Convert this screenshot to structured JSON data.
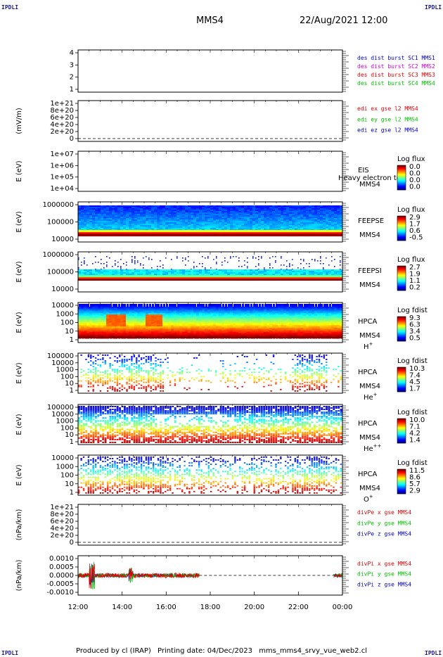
{
  "header": {
    "corner_label": "IPDLI",
    "spacecraft": "MMS4",
    "datetime": "22/Aug/2021 12:00"
  },
  "footer": {
    "produced_by": "Produced by cl (IRAP)",
    "printing_date": "Printing date: 04/Dec/2023",
    "filename": "mms_mms4_srvy_vue_web2.cl"
  },
  "colors": {
    "mms1": "#0000c8",
    "mms2": "#d000d0",
    "mms3": "#e00000",
    "mms4": "#00c000",
    "x": "#e00000",
    "y": "#00c000",
    "z": "#0000c8"
  },
  "chart_data": [
    {
      "id": "burst",
      "type": "scatter",
      "panel": 0,
      "ylim": [
        0.5,
        4.5
      ],
      "yticks": [
        "4",
        "3",
        "2",
        "1"
      ],
      "legend": [
        {
          "text": "des dist burst SC1 MMS1",
          "color": "mms1"
        },
        {
          "text": "des dist burst SC2 MMS2",
          "color": "mms2"
        },
        {
          "text": "des dist burst SC3 MMS3",
          "color": "mms3"
        },
        {
          "text": "des dist burst SC4 MMS4",
          "color": "mms4"
        }
      ]
    },
    {
      "id": "edi",
      "type": "line",
      "panel": 1,
      "ylabel": "(mV/m)",
      "yticks": [
        "1e+21",
        "8e+20",
        "6e+20",
        "4e+20",
        "2e+20",
        "0"
      ],
      "legend": [
        {
          "text": "edi ex gse l2 MMS4",
          "color": "x"
        },
        {
          "text": "edi ey gse l2 MMS4",
          "color": "y"
        },
        {
          "text": "edi ez gse l2 MMS4",
          "color": "z"
        }
      ]
    },
    {
      "id": "eis",
      "type": "heatmap",
      "panel": 2,
      "ylabel": "E (eV)",
      "yticks": [
        "1e+07",
        "1e+06",
        "1e+05",
        "1e+04"
      ],
      "instrument": "EIS",
      "spacecraft": "MMS4",
      "overlap_text": "Heavy electron to",
      "colorbar": {
        "title": "Log flux",
        "ticks": [
          "0.0",
          "0.0",
          "0.0",
          "0.0"
        ]
      }
    },
    {
      "id": "feepse",
      "type": "heatmap",
      "panel": 3,
      "ylabel": "E (eV)",
      "yticks": [
        "1000000",
        "100000",
        "10000"
      ],
      "instrument": "FEEPSE",
      "spacecraft": "MMS4",
      "colorbar": {
        "title": "Log flux",
        "ticks": [
          "2.9",
          "1.7",
          "0.6",
          "-0.5"
        ]
      }
    },
    {
      "id": "feepsi",
      "type": "heatmap",
      "panel": 4,
      "ylabel": "E (eV)",
      "yticks": [
        "1000000",
        "100000",
        "10000"
      ],
      "instrument": "FEEPSI",
      "spacecraft": "MMS4",
      "colorbar": {
        "title": "Log flux",
        "ticks": [
          "2.7",
          "1.9",
          "1.1",
          "0.2"
        ]
      }
    },
    {
      "id": "hpca_h",
      "type": "heatmap",
      "panel": 5,
      "ylabel": "E (eV)",
      "yticks": [
        "10000",
        "1000",
        "100",
        "10",
        "1"
      ],
      "instrument": "HPCA",
      "spacecraft": "MMS4",
      "species": "H",
      "charge": "+",
      "colorbar": {
        "title": "Log fdist",
        "ticks": [
          "9.3",
          "6.3",
          "3.4",
          "0.5"
        ]
      }
    },
    {
      "id": "hpca_he",
      "type": "heatmap",
      "panel": 6,
      "ylabel": "E (eV)",
      "yticks": [
        "100000",
        "10000",
        "1000",
        "100",
        "10",
        "1"
      ],
      "instrument": "HPCA",
      "spacecraft": "MMS4",
      "species": "He",
      "charge": "+",
      "colorbar": {
        "title": "Log fdist",
        "ticks": [
          "10.3",
          "7.4",
          "4.5",
          "1.7"
        ]
      }
    },
    {
      "id": "hpca_hepp",
      "type": "heatmap",
      "panel": 7,
      "ylabel": "E (eV)",
      "yticks": [
        "100000",
        "10000",
        "1000",
        "100",
        "10",
        "1"
      ],
      "instrument": "HPCA",
      "spacecraft": "MMS4",
      "species": "He",
      "charge": "++",
      "colorbar": {
        "title": "Log fdist",
        "ticks": [
          "10.0",
          "7.1",
          "4.2",
          "1.4"
        ]
      }
    },
    {
      "id": "hpca_o",
      "type": "heatmap",
      "panel": 8,
      "ylabel": "E (eV)",
      "yticks": [
        "10000",
        "1000",
        "100",
        "10",
        "1"
      ],
      "instrument": "HPCA",
      "spacecraft": "MMS4",
      "species": "O",
      "charge": "+",
      "colorbar": {
        "title": "Log fdist",
        "ticks": [
          "11.5",
          "8.6",
          "5.7",
          "2.9"
        ]
      }
    },
    {
      "id": "divpe",
      "type": "line",
      "panel": 9,
      "ylabel": "(nPa/km)",
      "yticks": [
        "1e+21",
        "8e+20",
        "6e+20",
        "4e+20",
        "2e+20",
        "0"
      ],
      "legend": [
        {
          "text": "divPe x gse MMS4",
          "color": "x"
        },
        {
          "text": "divPe y gse MMS4",
          "color": "y"
        },
        {
          "text": "divPe z gse MMS4",
          "color": "z"
        }
      ]
    },
    {
      "id": "divpi",
      "type": "line",
      "panel": 10,
      "ylabel": "(nPa/km)",
      "ylim": [
        -0.0013,
        0.0013
      ],
      "yticks": [
        "0.0010",
        "0.0005",
        "0.0000",
        "-0.0005",
        "-0.0010"
      ],
      "data_gaps": [
        [
          "17:30",
          "22:50"
        ]
      ],
      "legend": [
        {
          "text": "divPi x gse MMS4",
          "color": "x"
        },
        {
          "text": "divPi y gse MMS4",
          "color": "y"
        },
        {
          "text": "divPi z gse MMS4",
          "color": "z"
        }
      ]
    }
  ],
  "xaxis": {
    "range": [
      "12:00",
      "00:00"
    ],
    "ticks": [
      "12:00",
      "14:00",
      "16:00",
      "18:00",
      "20:00",
      "22:00",
      "00:00"
    ]
  }
}
